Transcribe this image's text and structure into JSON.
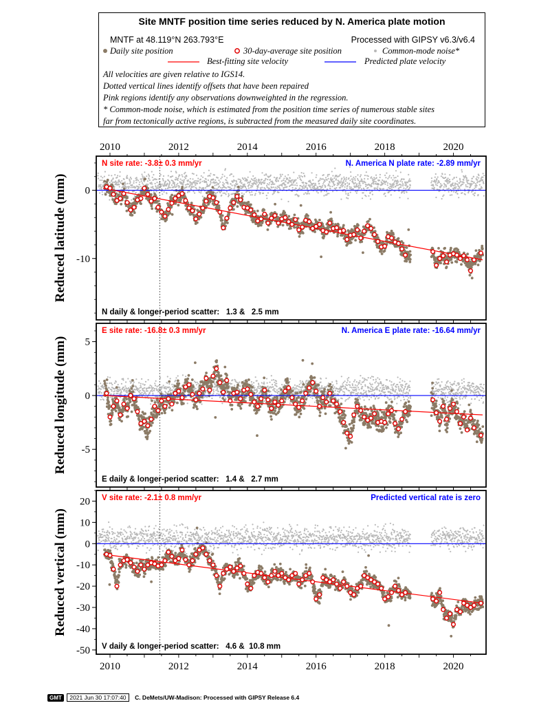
{
  "header": {
    "title": "Site MNTF position time series reduced by N. America plate motion",
    "site_line": "MNTF at 48.119°N 263.793°E",
    "processed_line": "Processed with GIPSY v6.3/v6.4",
    "legend": {
      "daily": "Daily site position",
      "avg": "30-day-average site position",
      "noise": "Common-mode noise*",
      "best": "Best-fitting site velocity",
      "pred": "Predicted plate velocity"
    },
    "notes": [
      "All velocities are given relative to IGS14.",
      "Dotted vertical lines identify offsets that have been repaired",
      "Pink regions identify any observations downweighted in the regression.",
      "* Common-mode noise, which is estimated from the position time series of numerous stable sites",
      "far from tectonically active regions, is subtracted from the measured daily site coordinates."
    ]
  },
  "colors": {
    "daily": "#8b7b66",
    "noise": "#b8b8b8",
    "avg_fill": "#ffffff",
    "avg_stroke": "#e00000",
    "best": "#ff0000",
    "pred": "#0000ff",
    "site_rate": "#ff0000",
    "plate_rate": "#0000ff"
  },
  "chart_data": [
    {
      "type": "scatter",
      "component": "N",
      "ylabel": "Reduced latitude (mm)",
      "xlim": [
        2009.6,
        2020.95
      ],
      "ylim": [
        -19,
        5
      ],
      "yticks": [
        0,
        -10
      ],
      "xticks": [
        2010,
        2012,
        2014,
        2016,
        2018,
        2020
      ],
      "site_rate_label": "N site rate:  -3.8± 0.3 mm/yr",
      "plate_rate_label": "N. America N plate rate: -2.89 mm/yr",
      "scatter_label": "N daily & longer-period scatter:   1.3 &   2.5 mm",
      "fit_line": {
        "x": [
          2009.8,
          2020.85
        ],
        "y": [
          0.3,
          -10.2
        ]
      },
      "predicted_line": {
        "y": 0
      },
      "offset_x": 2011.45,
      "gap": [
        2018.75,
        2019.35
      ],
      "avg_x": [
        2009.9,
        2010.0,
        2010.1,
        2010.2,
        2010.3,
        2010.4,
        2010.5,
        2010.6,
        2010.7,
        2010.8,
        2010.9,
        2011.0,
        2011.1,
        2011.2,
        2011.3,
        2011.4,
        2011.5,
        2011.6,
        2011.7,
        2011.8,
        2011.9,
        2012.0,
        2012.1,
        2012.2,
        2012.3,
        2012.4,
        2012.5,
        2012.6,
        2012.7,
        2012.8,
        2012.9,
        2013.0,
        2013.1,
        2013.2,
        2013.3,
        2013.4,
        2013.5,
        2013.6,
        2013.7,
        2013.8,
        2013.9,
        2014.0,
        2014.1,
        2014.2,
        2014.3,
        2014.4,
        2014.5,
        2014.6,
        2014.7,
        2014.8,
        2014.9,
        2015.0,
        2015.1,
        2015.2,
        2015.3,
        2015.4,
        2015.5,
        2015.6,
        2015.7,
        2015.8,
        2015.9,
        2016.0,
        2016.1,
        2016.2,
        2016.3,
        2016.4,
        2016.5,
        2016.6,
        2016.7,
        2016.8,
        2016.9,
        2017.0,
        2017.1,
        2017.2,
        2017.3,
        2017.4,
        2017.5,
        2017.6,
        2017.7,
        2017.8,
        2017.9,
        2018.0,
        2018.1,
        2018.2,
        2018.3,
        2018.4,
        2018.5,
        2018.6,
        2019.4,
        2019.5,
        2019.6,
        2019.7,
        2019.8,
        2019.9,
        2020.0,
        2020.1,
        2020.2,
        2020.3,
        2020.4,
        2020.5,
        2020.6,
        2020.8
      ],
      "avg_y": [
        0.5,
        0.3,
        -0.6,
        -1.5,
        -1.2,
        -0.5,
        -1.8,
        -2.9,
        -2.5,
        -1.4,
        -1.2,
        0.3,
        -0.6,
        -1.6,
        -1.2,
        -2.5,
        -3.2,
        -3.8,
        -2.8,
        -1.9,
        -1.2,
        -0.8,
        -0.5,
        -1.5,
        -2.6,
        -3.0,
        -4.2,
        -3.5,
        -2.6,
        -1.6,
        -0.9,
        -1.1,
        -1.8,
        -3.2,
        -5.5,
        -4.1,
        -2.6,
        -1.8,
        -0.9,
        -1.4,
        -2.5,
        -2.6,
        -2.9,
        -3.6,
        -4.5,
        -4.2,
        -3.5,
        -4.8,
        -4.1,
        -3.7,
        -4.8,
        -4.2,
        -4.0,
        -4.6,
        -5.0,
        -4.3,
        -5.8,
        -5.4,
        -4.4,
        -4.6,
        -5.6,
        -5.3,
        -5.0,
        -5.9,
        -6.1,
        -4.8,
        -5.6,
        -5.5,
        -6.0,
        -5.9,
        -7.2,
        -6.6,
        -6.5,
        -5.8,
        -7.0,
        -6.0,
        -5.2,
        -5.6,
        -6.5,
        -7.5,
        -8.3,
        -8.2,
        -6.8,
        -7.0,
        -7.6,
        -7.8,
        -8.6,
        -9.5,
        -9.0,
        -11.0,
        -10.0,
        -9.6,
        -10.5,
        -9.5,
        -9.3,
        -9.5,
        -10.0,
        -9.6,
        -10.2,
        -11.8,
        -10.2,
        -9.2
      ]
    },
    {
      "type": "scatter",
      "component": "E",
      "ylabel": "Reduced longitude (mm)",
      "xlim": [
        2009.6,
        2020.95
      ],
      "ylim": [
        -8.5,
        6.7
      ],
      "yticks": [
        5,
        0,
        -5
      ],
      "xticks": [
        2010,
        2012,
        2014,
        2016,
        2018,
        2020
      ],
      "site_rate_label": "E site rate: -16.8± 0.3 mm/yr",
      "plate_rate_label": "N. America E plate rate: -16.64 mm/yr",
      "scatter_label": "E daily & longer-period scatter:   1.4 &   2.7 mm",
      "fit_line": {
        "x": [
          2009.8,
          2020.85
        ],
        "y": [
          0.0,
          -1.8
        ]
      },
      "predicted_line": {
        "y": 0
      },
      "offset_x": 2011.45,
      "gap": [
        2018.75,
        2019.35
      ],
      "avg_x": [
        2009.9,
        2010.0,
        2010.1,
        2010.2,
        2010.3,
        2010.4,
        2010.5,
        2010.6,
        2010.7,
        2010.8,
        2010.9,
        2011.0,
        2011.1,
        2011.2,
        2011.3,
        2011.4,
        2011.5,
        2011.6,
        2011.7,
        2011.8,
        2011.9,
        2012.0,
        2012.1,
        2012.2,
        2012.3,
        2012.4,
        2012.5,
        2012.6,
        2012.7,
        2012.8,
        2012.9,
        2013.0,
        2013.1,
        2013.2,
        2013.3,
        2013.4,
        2013.5,
        2013.6,
        2013.7,
        2013.8,
        2013.9,
        2014.0,
        2014.1,
        2014.2,
        2014.3,
        2014.4,
        2014.5,
        2014.6,
        2014.7,
        2014.8,
        2014.9,
        2015.0,
        2015.1,
        2015.2,
        2015.3,
        2015.4,
        2015.5,
        2015.6,
        2015.7,
        2015.8,
        2015.9,
        2016.0,
        2016.1,
        2016.2,
        2016.3,
        2016.4,
        2016.5,
        2016.6,
        2016.7,
        2016.8,
        2016.9,
        2017.0,
        2017.1,
        2017.2,
        2017.3,
        2017.4,
        2017.5,
        2017.6,
        2017.7,
        2017.8,
        2017.9,
        2018.0,
        2018.1,
        2018.2,
        2018.3,
        2018.4,
        2018.5,
        2018.6,
        2019.4,
        2019.5,
        2019.6,
        2019.7,
        2019.8,
        2019.9,
        2020.0,
        2020.1,
        2020.2,
        2020.3,
        2020.4,
        2020.5,
        2020.6,
        2020.8
      ],
      "avg_y": [
        0.2,
        -2.0,
        -1.0,
        -0.5,
        -1.8,
        -0.8,
        -1.2,
        0.0,
        -0.3,
        -1.5,
        -2.6,
        -2.4,
        -2.8,
        -2.2,
        -1.0,
        -1.4,
        -0.5,
        -1.0,
        -0.3,
        -0.8,
        0.2,
        0.4,
        -0.2,
        0.8,
        1.0,
        0.1,
        -0.4,
        0.2,
        0.6,
        1.6,
        0.5,
        1.8,
        2.5,
        1.2,
        0.3,
        1.4,
        -0.5,
        0.2,
        0.3,
        -0.3,
        0.5,
        0.6,
        0.1,
        -0.6,
        -1.0,
        -0.3,
        0.5,
        -0.4,
        -1.2,
        -0.6,
        -0.9,
        -0.5,
        0.4,
        0.7,
        -0.2,
        -0.8,
        -1.1,
        -0.5,
        0.2,
        0.7,
        1.2,
        0.4,
        -1.0,
        -0.2,
        -0.6,
        0.2,
        -0.5,
        -0.8,
        -1.5,
        -2.5,
        -3.5,
        -3.8,
        -1.8,
        -1.0,
        -1.4,
        -2.0,
        -2.3,
        -2.1,
        -1.7,
        -2.5,
        -2.4,
        -2.5,
        -1.7,
        -1.4,
        -2.6,
        -3.1,
        -2.2,
        -1.5,
        -0.4,
        -1.6,
        -2.4,
        -1.0,
        -2.2,
        -1.2,
        -0.8,
        -1.5,
        -2.6,
        -2.0,
        -3.2,
        -2.1,
        -3.0,
        -3.7
      ]
    },
    {
      "type": "scatter",
      "component": "V",
      "ylabel": "Reduced vertical (mm)",
      "xlim": [
        2009.6,
        2020.95
      ],
      "ylim": [
        -52,
        25
      ],
      "yticks": [
        20,
        10,
        0,
        -10,
        -20,
        -30,
        -40,
        -50
      ],
      "xticks": [
        2010,
        2012,
        2014,
        2016,
        2018,
        2020
      ],
      "site_rate_label": "V site rate:  -2.1± 0.8 mm/yr",
      "plate_rate_label": "Predicted vertical rate is zero",
      "scatter_label": "V daily & longer-period scatter:   4.6 &  10.8 mm",
      "fit_line": {
        "x": [
          2009.8,
          2020.85
        ],
        "y": [
          -5.0,
          -28.0
        ]
      },
      "predicted_line": {
        "y": 0
      },
      "offset_x": 2011.45,
      "gap": [
        2018.75,
        2019.35
      ],
      "avg_x": [
        2009.9,
        2010.0,
        2010.1,
        2010.2,
        2010.3,
        2010.4,
        2010.5,
        2010.6,
        2010.7,
        2010.8,
        2010.9,
        2011.0,
        2011.1,
        2011.2,
        2011.3,
        2011.4,
        2011.5,
        2011.6,
        2011.7,
        2011.8,
        2011.9,
        2012.0,
        2012.1,
        2012.2,
        2012.3,
        2012.4,
        2012.5,
        2012.6,
        2012.7,
        2012.8,
        2012.9,
        2013.0,
        2013.1,
        2013.2,
        2013.3,
        2013.4,
        2013.5,
        2013.6,
        2013.7,
        2013.8,
        2013.9,
        2014.0,
        2014.1,
        2014.2,
        2014.3,
        2014.4,
        2014.5,
        2014.6,
        2014.7,
        2014.8,
        2014.9,
        2015.0,
        2015.1,
        2015.2,
        2015.3,
        2015.4,
        2015.5,
        2015.6,
        2015.7,
        2015.8,
        2015.9,
        2016.0,
        2016.1,
        2016.2,
        2016.3,
        2016.4,
        2016.5,
        2016.6,
        2016.7,
        2016.8,
        2016.9,
        2017.0,
        2017.1,
        2017.2,
        2017.3,
        2017.4,
        2017.5,
        2017.6,
        2017.7,
        2017.8,
        2017.9,
        2018.0,
        2018.1,
        2018.2,
        2018.3,
        2018.4,
        2018.5,
        2018.6,
        2019.4,
        2019.5,
        2019.6,
        2019.7,
        2019.8,
        2019.9,
        2020.0,
        2020.1,
        2020.2,
        2020.3,
        2020.4,
        2020.5,
        2020.6,
        2020.8
      ],
      "avg_y": [
        -5.0,
        -5.5,
        -12.0,
        -20.0,
        -10.0,
        -8.0,
        -7.5,
        -9.0,
        -11.0,
        -13.0,
        -10.0,
        -12.0,
        -10.0,
        -9.0,
        -9.5,
        -10.5,
        -10.0,
        -8.0,
        -4.0,
        -6.0,
        -8.0,
        -7.0,
        -3.0,
        -7.5,
        -10.0,
        -8.0,
        -5.0,
        -3.0,
        -2.0,
        -5.0,
        -8.0,
        -10.0,
        -15.0,
        -20.0,
        -14.0,
        -12.0,
        -11.0,
        -13.0,
        -11.5,
        -10.5,
        -14.0,
        -19.0,
        -21.0,
        -15.0,
        -13.5,
        -14.0,
        -16.0,
        -18.0,
        -15.0,
        -13.0,
        -15.0,
        -14.0,
        -16.0,
        -17.0,
        -15.0,
        -14.0,
        -19.0,
        -17.0,
        -15.0,
        -14.0,
        -18.0,
        -26.0,
        -24.0,
        -16.0,
        -17.0,
        -18.0,
        -17.0,
        -19.0,
        -21.0,
        -18.0,
        -20.0,
        -23.0,
        -24.0,
        -21.0,
        -20.0,
        -15.0,
        -16.0,
        -17.0,
        -18.0,
        -19.0,
        -21.0,
        -26.0,
        -25.0,
        -23.0,
        -20.0,
        -22.0,
        -24.0,
        -23.0,
        -26.0,
        -27.0,
        -23.0,
        -31.0,
        -35.0,
        -33.0,
        -38.0,
        -31.0,
        -32.0,
        -28.0,
        -29.0,
        -30.0,
        -29.0,
        -28.0
      ]
    }
  ],
  "footer": {
    "logo": "GMT",
    "timestamp": "2021 Jun 30 17:07:40",
    "credit": "C. DeMets/UW-Madison: Processed with GIPSY Release 6.4"
  }
}
